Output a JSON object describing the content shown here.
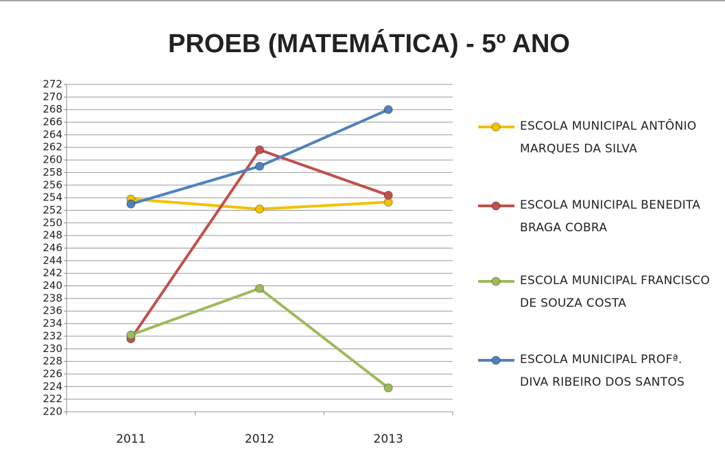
{
  "chart_data": {
    "type": "line",
    "title": "PROEB (MATEMÁTICA) - 5º ANO",
    "categories": [
      "2011",
      "2012",
      "2013"
    ],
    "series": [
      {
        "name": "ESCOLA MUNICIPAL ANTÔNIO MARQUES DA SILVA",
        "color": "#f2c100",
        "values": [
          253.8,
          252.2,
          253.3
        ]
      },
      {
        "name": "ESCOLA MUNICIPAL BENEDITA BRAGA COBRA",
        "color": "#c0504d",
        "values": [
          231.6,
          261.6,
          254.4
        ]
      },
      {
        "name": "ESCOLA MUNICIPAL FRANCISCO DE SOUZA COSTA",
        "color": "#9bbb59",
        "values": [
          232.2,
          239.6,
          223.8
        ]
      },
      {
        "name": "ESCOLA MUNICIPAL PROFª. DIVA RIBEIRO DOS SANTOS",
        "color": "#4f81bd",
        "values": [
          253,
          259,
          268
        ]
      }
    ],
    "ylim": [
      220,
      272
    ],
    "yticks": [
      220,
      222,
      224,
      226,
      228,
      230,
      232,
      234,
      236,
      238,
      240,
      242,
      244,
      246,
      248,
      250,
      252,
      254,
      256,
      258,
      260,
      262,
      264,
      266,
      268,
      270,
      272
    ],
    "grid": true,
    "legend": "right"
  }
}
